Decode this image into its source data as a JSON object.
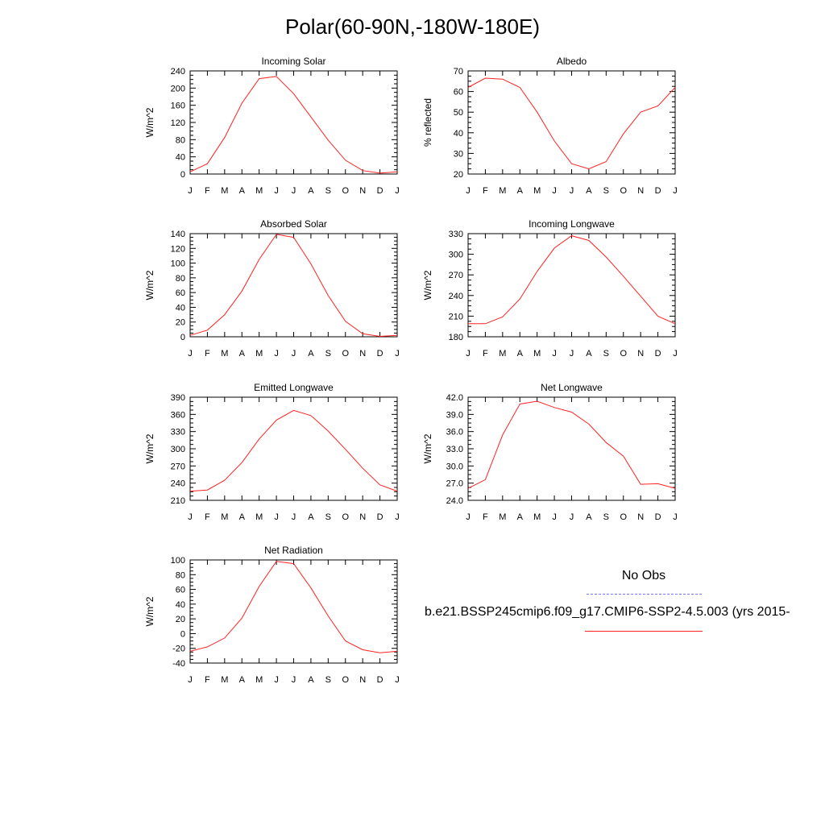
{
  "title": "Polar(60-90N,-180W-180E)",
  "legend": {
    "obs_label": "No Obs",
    "obs_color": "#7777ff",
    "model_label": "b.e21.BSSP245cmip6.f09_g17.CMIP6-SSP2-4.5.003 (yrs 2015-",
    "model_color": "#ff2222"
  },
  "chart_data": [
    {
      "type": "line",
      "title": "Incoming Solar",
      "ylabel": "W/m^2",
      "xlabel": "",
      "ylim": [
        0,
        240
      ],
      "yticks": [
        "0",
        "40",
        "80",
        "120",
        "160",
        "200",
        "240"
      ],
      "categories": [
        "J",
        "F",
        "M",
        "A",
        "M",
        "J",
        "J",
        "A",
        "S",
        "O",
        "N",
        "D",
        "J"
      ],
      "series": [
        {
          "values": [
            5,
            24,
            85,
            165,
            222,
            227,
            187,
            133,
            79,
            32,
            8,
            2,
            5
          ]
        }
      ]
    },
    {
      "type": "line",
      "title": "Albedo",
      "ylabel": "% reflected",
      "xlabel": "",
      "ylim": [
        20,
        70
      ],
      "yticks": [
        "20",
        "30",
        "40",
        "50",
        "60",
        "70"
      ],
      "categories": [
        "J",
        "F",
        "M",
        "A",
        "M",
        "J",
        "J",
        "A",
        "S",
        "O",
        "N",
        "D",
        "J"
      ],
      "series": [
        {
          "values": [
            62,
            66.5,
            66,
            62,
            50,
            36,
            25,
            22.5,
            26,
            39.5,
            50,
            53,
            62
          ]
        }
      ]
    },
    {
      "type": "line",
      "title": "Absorbed Solar",
      "ylabel": "W/m^2",
      "xlabel": "",
      "ylim": [
        0,
        140
      ],
      "yticks": [
        "0",
        "20",
        "40",
        "60",
        "80",
        "100",
        "120",
        "140"
      ],
      "categories": [
        "J",
        "F",
        "M",
        "A",
        "M",
        "J",
        "J",
        "A",
        "S",
        "O",
        "N",
        "D",
        "J"
      ],
      "series": [
        {
          "values": [
            2,
            9,
            30,
            62,
            105,
            139,
            135,
            99,
            56,
            21,
            4,
            0.5,
            2
          ]
        }
      ]
    },
    {
      "type": "line",
      "title": "Incoming Longwave",
      "ylabel": "W/m^2",
      "xlabel": "",
      "ylim": [
        180,
        330
      ],
      "yticks": [
        "180",
        "210",
        "240",
        "270",
        "300",
        "330"
      ],
      "categories": [
        "J",
        "F",
        "M",
        "A",
        "M",
        "J",
        "J",
        "A",
        "S",
        "O",
        "N",
        "D",
        "J"
      ],
      "series": [
        {
          "values": [
            199,
            199,
            209,
            235,
            275,
            309,
            327,
            320,
            296,
            268,
            239,
            210,
            199
          ]
        }
      ]
    },
    {
      "type": "line",
      "title": "Emitted Longwave",
      "ylabel": "W/m^2",
      "xlabel": "",
      "ylim": [
        210,
        390
      ],
      "yticks": [
        "210",
        "240",
        "270",
        "300",
        "330",
        "360",
        "390"
      ],
      "categories": [
        "J",
        "F",
        "M",
        "A",
        "M",
        "J",
        "J",
        "A",
        "S",
        "O",
        "N",
        "D",
        "J"
      ],
      "series": [
        {
          "values": [
            226,
            228,
            245,
            276,
            317,
            350,
            367,
            358,
            331,
            299,
            266,
            237,
            226
          ]
        }
      ]
    },
    {
      "type": "line",
      "title": "Net Longwave",
      "ylabel": "W/m^2",
      "xlabel": "",
      "ylim": [
        24,
        42
      ],
      "yticks": [
        "24.0",
        "27.0",
        "30.0",
        "33.0",
        "36.0",
        "39.0",
        "42.0"
      ],
      "categories": [
        "J",
        "F",
        "M",
        "A",
        "M",
        "J",
        "J",
        "A",
        "S",
        "O",
        "N",
        "D",
        "J"
      ],
      "series": [
        {
          "values": [
            26.1,
            27.6,
            35.4,
            40.8,
            41.3,
            40.2,
            39.4,
            37.3,
            34.1,
            31.7,
            26.8,
            26.9,
            26.1
          ]
        }
      ]
    },
    {
      "type": "line",
      "title": "Net Radiation",
      "ylabel": "W/m^2",
      "xlabel": "",
      "ylim": [
        -40,
        100
      ],
      "yticks": [
        "-40",
        "-20",
        "0",
        "20",
        "40",
        "60",
        "80",
        "100"
      ],
      "categories": [
        "J",
        "F",
        "M",
        "A",
        "M",
        "J",
        "J",
        "A",
        "S",
        "O",
        "N",
        "D",
        "J"
      ],
      "series": [
        {
          "values": [
            -24,
            -18,
            -6,
            21,
            64,
            98,
            95,
            62,
            24,
            -10,
            -22,
            -26,
            -24
          ]
        }
      ]
    }
  ]
}
